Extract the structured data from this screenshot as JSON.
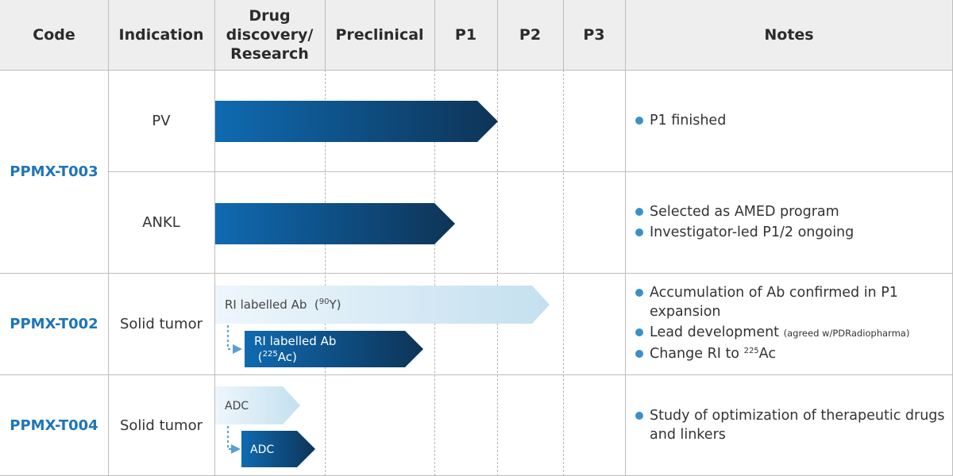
{
  "header": {
    "code": "Code",
    "indication": "Indication",
    "drug_discovery": [
      "Drug",
      "discovery/",
      "Research"
    ],
    "preclinical": "Preclinical",
    "p1": "P1",
    "p2": "P2",
    "p3": "P3",
    "notes": "Notes"
  },
  "programs": [
    {
      "code": "PPMX-T003",
      "rows": [
        {
          "indication": "PV",
          "notes": [
            "P1 finished"
          ]
        },
        {
          "indication": "ANKL",
          "notes": [
            "Selected as AMED program",
            "Investigator-led P1/2 ongoing"
          ]
        }
      ]
    },
    {
      "code": "PPMX-T002",
      "indication": "Solid tumor",
      "bar_light": {
        "label": "RI labelled Ab",
        "sup": "90",
        "suffix": "Y"
      },
      "bar_dark": {
        "label_line1": "RI labelled Ab",
        "sup": "225",
        "suffix": "Ac"
      },
      "notes": {
        "n1": "Accumulation of Ab confirmed in P1 expansion",
        "n2_main": "Lead development",
        "n2_small": "(agreed w/PDRadiopharma)",
        "n3_prefix": "Change RI to ",
        "n3_sup": "225",
        "n3_suffix": "Ac"
      }
    },
    {
      "code": "PPMX-T004",
      "indication": "Solid tumor",
      "bar_light": {
        "label": "ADC"
      },
      "bar_dark": {
        "label": "ADC"
      },
      "notes": [
        "Study of  optimization of therapeutic drugs and linkers"
      ]
    }
  ],
  "colors": {
    "code_text": "#1f75b6",
    "header_bg": "#eeeeee",
    "bullet": "#3d8fc8",
    "bar_dark_start": "#0f6ab1",
    "bar_dark_end": "#0e3457",
    "bar_light_start": "#eaf4fb",
    "bar_light_end": "#c4e0ef"
  }
}
